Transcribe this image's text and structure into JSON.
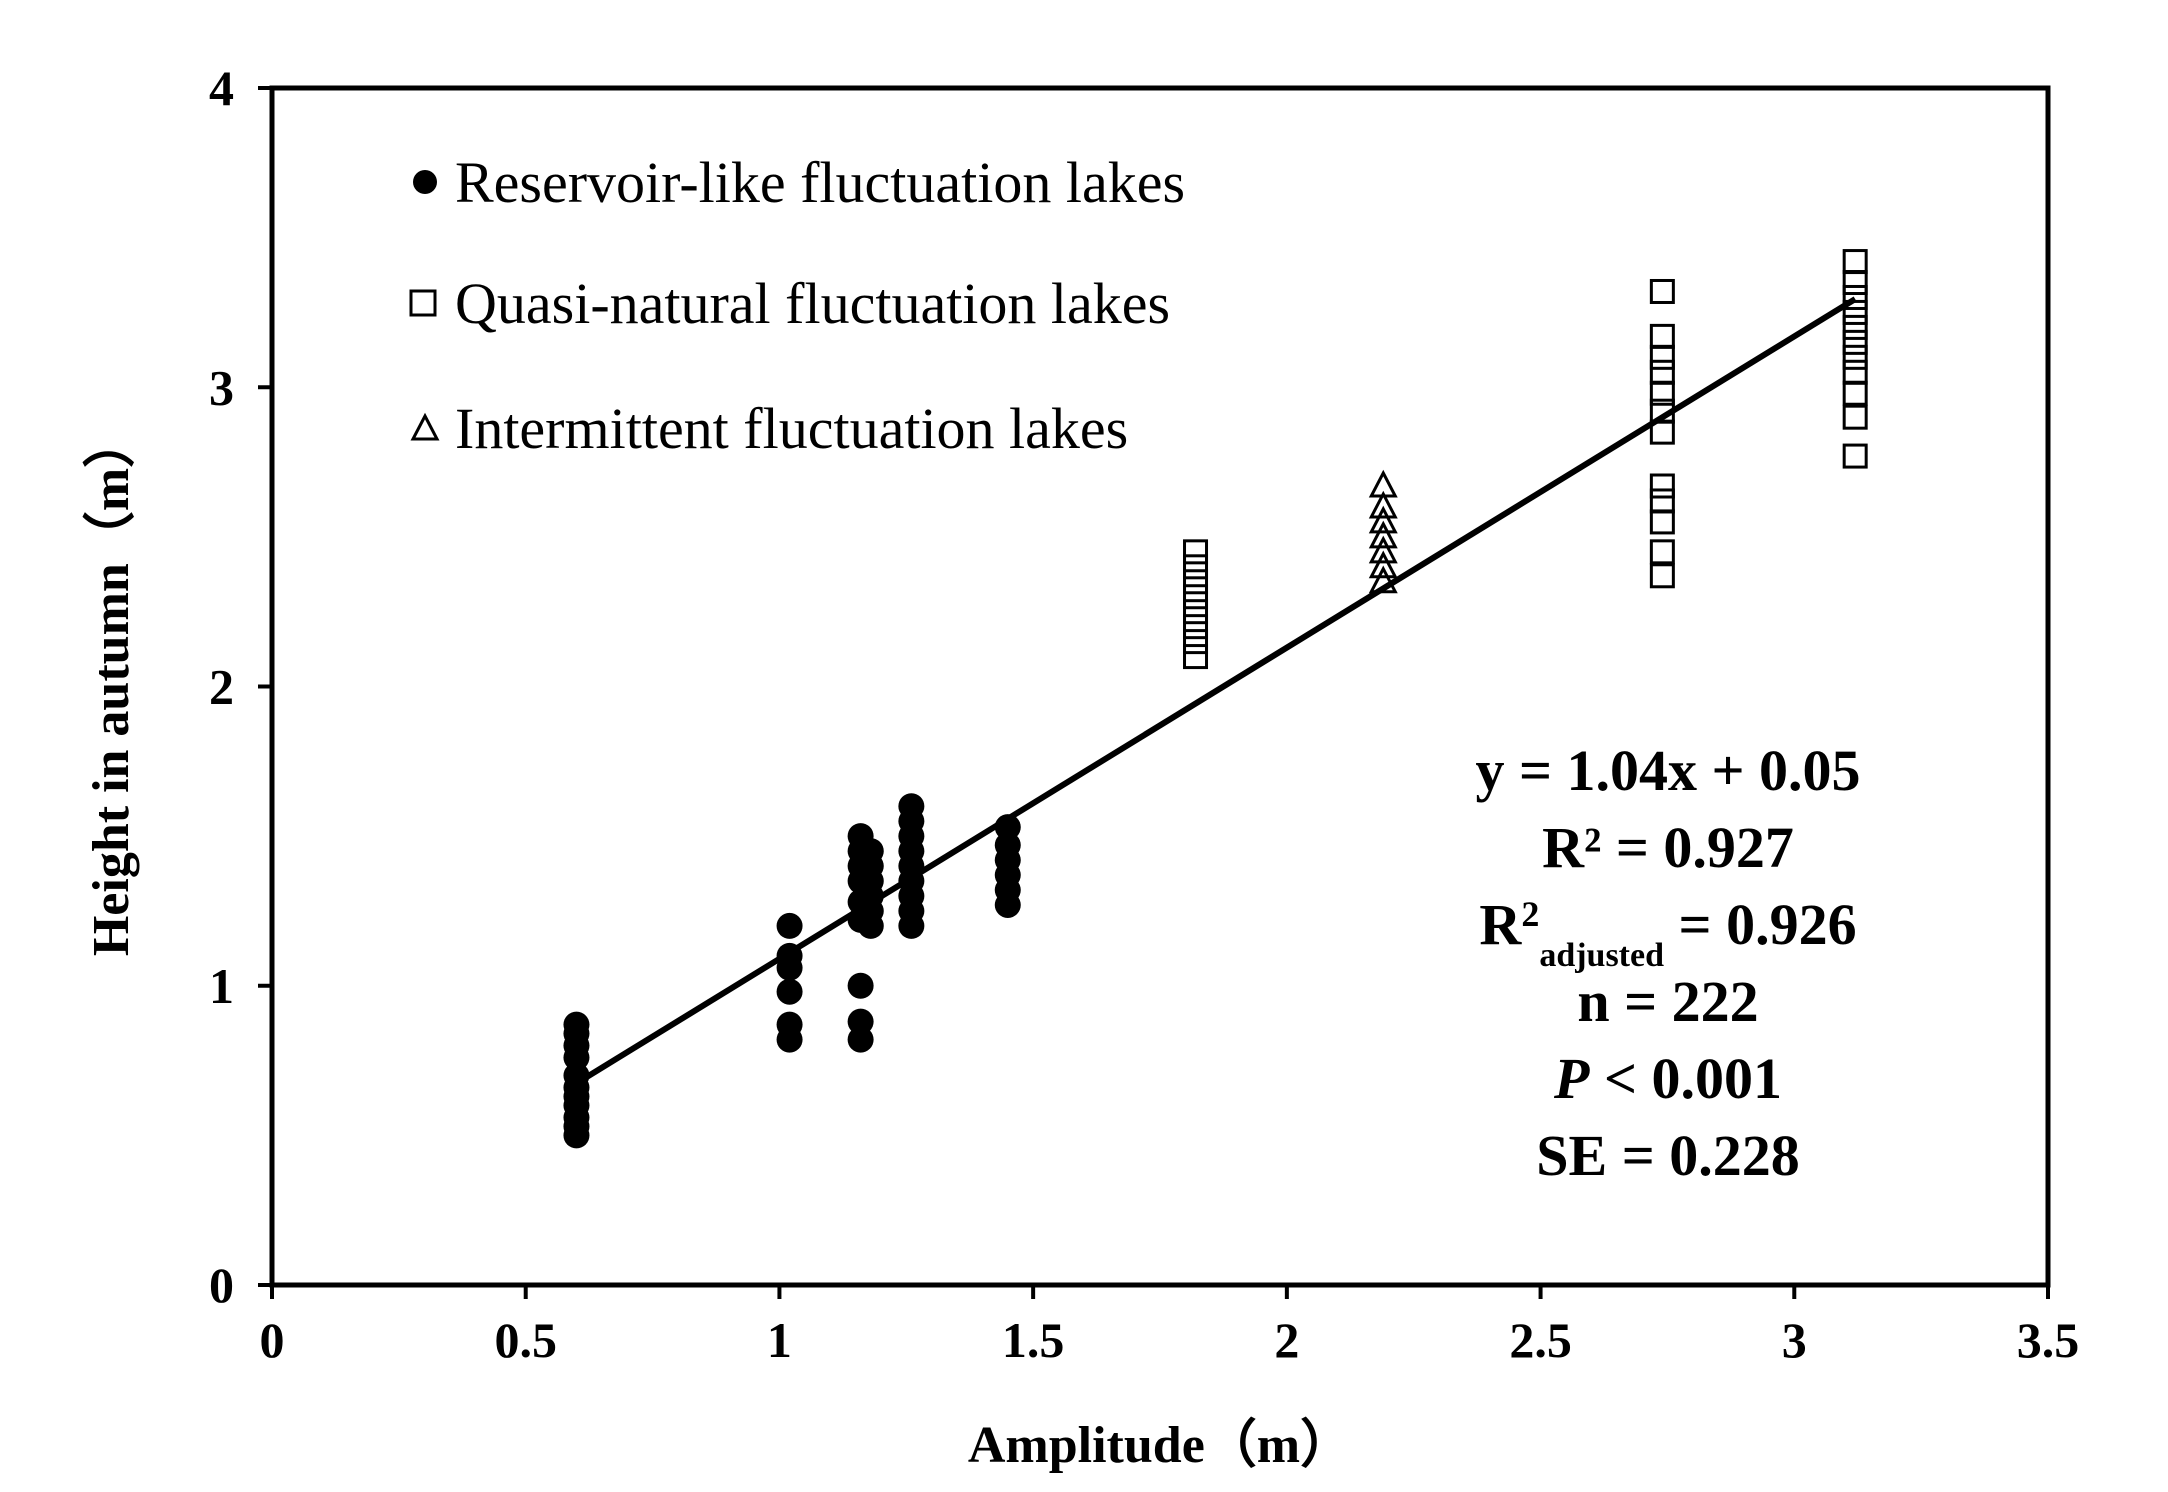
{
  "chart_data": {
    "type": "scatter",
    "title": "",
    "xlabel": "Amplitude（m）",
    "ylabel": "Height in autumn（m）",
    "xlim": [
      0,
      3.5
    ],
    "ylim": [
      0,
      4
    ],
    "grid": false,
    "x_ticks": [
      "0",
      "0.5",
      "1",
      "1.5",
      "2",
      "2.5",
      "3",
      "3.5"
    ],
    "y_ticks": [
      "0",
      "1",
      "2",
      "3",
      "4"
    ],
    "legend_position": "top-left",
    "series": [
      {
        "name": "Reservoir-like fluctuation lakes",
        "marker": "filled-circle",
        "points": [
          [
            0.6,
            0.5
          ],
          [
            0.6,
            0.53
          ],
          [
            0.6,
            0.56
          ],
          [
            0.6,
            0.6
          ],
          [
            0.6,
            0.63
          ],
          [
            0.6,
            0.66
          ],
          [
            0.6,
            0.7
          ],
          [
            0.6,
            0.76
          ],
          [
            0.6,
            0.8
          ],
          [
            0.6,
            0.84
          ],
          [
            0.6,
            0.87
          ],
          [
            1.02,
            0.82
          ],
          [
            1.02,
            0.87
          ],
          [
            1.02,
            0.98
          ],
          [
            1.02,
            1.06
          ],
          [
            1.02,
            1.1
          ],
          [
            1.02,
            1.2
          ],
          [
            1.16,
            0.82
          ],
          [
            1.16,
            0.88
          ],
          [
            1.16,
            1.0
          ],
          [
            1.16,
            1.22
          ],
          [
            1.16,
            1.28
          ],
          [
            1.16,
            1.35
          ],
          [
            1.16,
            1.4
          ],
          [
            1.16,
            1.45
          ],
          [
            1.16,
            1.5
          ],
          [
            1.18,
            1.2
          ],
          [
            1.18,
            1.25
          ],
          [
            1.18,
            1.3
          ],
          [
            1.18,
            1.35
          ],
          [
            1.18,
            1.4
          ],
          [
            1.18,
            1.45
          ],
          [
            1.26,
            1.2
          ],
          [
            1.26,
            1.25
          ],
          [
            1.26,
            1.3
          ],
          [
            1.26,
            1.35
          ],
          [
            1.26,
            1.4
          ],
          [
            1.26,
            1.45
          ],
          [
            1.26,
            1.5
          ],
          [
            1.26,
            1.55
          ],
          [
            1.26,
            1.6
          ],
          [
            1.45,
            1.27
          ],
          [
            1.45,
            1.32
          ],
          [
            1.45,
            1.37
          ],
          [
            1.45,
            1.42
          ],
          [
            1.45,
            1.47
          ],
          [
            1.45,
            1.53
          ]
        ]
      },
      {
        "name": "Quasi-natural fluctuation lakes",
        "marker": "open-square",
        "points": [
          [
            1.82,
            2.1
          ],
          [
            1.82,
            2.15
          ],
          [
            1.82,
            2.2
          ],
          [
            1.82,
            2.25
          ],
          [
            1.82,
            2.3
          ],
          [
            1.82,
            2.35
          ],
          [
            1.82,
            2.4
          ],
          [
            1.82,
            2.45
          ],
          [
            2.74,
            2.37
          ],
          [
            2.74,
            2.45
          ],
          [
            2.74,
            2.55
          ],
          [
            2.74,
            2.62
          ],
          [
            2.74,
            2.67
          ],
          [
            2.74,
            2.85
          ],
          [
            2.74,
            2.92
          ],
          [
            2.74,
            2.98
          ],
          [
            2.74,
            3.05
          ],
          [
            2.74,
            3.1
          ],
          [
            2.74,
            3.17
          ],
          [
            2.74,
            3.32
          ],
          [
            3.12,
            2.77
          ],
          [
            3.12,
            2.9
          ],
          [
            3.12,
            2.98
          ],
          [
            3.12,
            3.05
          ],
          [
            3.12,
            3.1
          ],
          [
            3.12,
            3.15
          ],
          [
            3.12,
            3.2
          ],
          [
            3.12,
            3.25
          ],
          [
            3.12,
            3.3
          ],
          [
            3.12,
            3.35
          ],
          [
            3.12,
            3.42
          ]
        ]
      },
      {
        "name": "Intermittent fluctuation lakes",
        "marker": "open-triangle",
        "points": [
          [
            2.19,
            2.35
          ],
          [
            2.19,
            2.4
          ],
          [
            2.19,
            2.45
          ],
          [
            2.19,
            2.5
          ],
          [
            2.19,
            2.55
          ],
          [
            2.19,
            2.6
          ],
          [
            2.19,
            2.67
          ]
        ]
      }
    ],
    "regression": {
      "slope": 1.04,
      "intercept": 0.05,
      "x_range": [
        0.58,
        3.12
      ],
      "equation": "y = 1.04x + 0.05",
      "r2": "R² = 0.927",
      "r2_adj_prefix": "R",
      "r2_adj_sup": "2",
      "r2_adj_sub": "adjusted",
      "r2_adj_value": " = 0.926",
      "n": "n = 222",
      "p_symbol": "P",
      "p_value": " < 0.001",
      "se": "SE = 0.228"
    }
  }
}
